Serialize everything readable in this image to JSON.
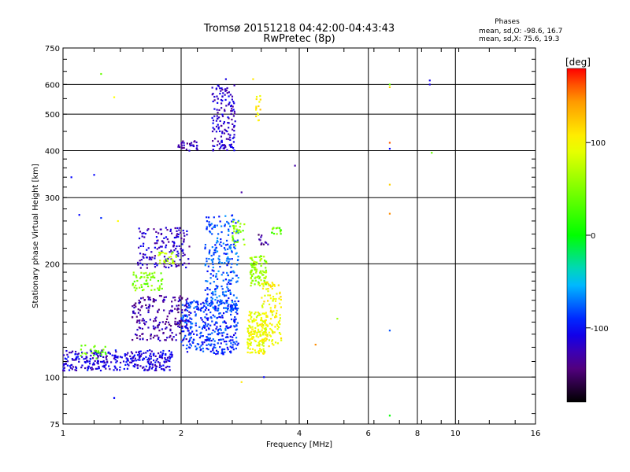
{
  "chart_data": {
    "type": "scatter",
    "title": "Tromsø 20151218 04:42:00-04:43:43",
    "subtitle": "RwPretec (8p)",
    "xlabel": "Frequency [MHz]",
    "ylabel": "Stationary phase Virtual Height [km]",
    "x_scale": "log",
    "y_scale": "log",
    "xlim": [
      1,
      16
    ],
    "ylim": [
      75,
      750
    ],
    "x_ticks": [
      1,
      2,
      4,
      6,
      8,
      10,
      16
    ],
    "y_ticks": [
      75,
      100,
      200,
      300,
      400,
      500,
      600,
      750
    ],
    "grid": true,
    "phases_header": "Phases",
    "phases_stats": [
      "mean, sd,O: -98.6, 16.7",
      "mean, sd,X:  75.6, 19.3"
    ],
    "colorbar": {
      "label": "[deg]",
      "range": [
        -180,
        180
      ],
      "ticks": [
        100,
        0,
        -100
      ],
      "colors": [
        "#ff0000",
        "#ff8000",
        "#ffff00",
        "#00ff00",
        "#00ffff",
        "#0000ff",
        "#800080",
        "#000000"
      ]
    },
    "clusters": [
      {
        "x": [
          1.0,
          1.9
        ],
        "y": [
          104,
          118
        ],
        "phase": -112,
        "n": 320
      },
      {
        "x": [
          1.1,
          1.3
        ],
        "y": [
          112,
          122
        ],
        "phase": 40,
        "n": 25
      },
      {
        "x": [
          1.5,
          2.1
        ],
        "y": [
          125,
          165
        ],
        "phase": -130,
        "n": 200
      },
      {
        "x": [
          1.5,
          1.8
        ],
        "y": [
          170,
          190
        ],
        "phase": 50,
        "n": 60
      },
      {
        "x": [
          1.55,
          2.1
        ],
        "y": [
          195,
          250
        ],
        "phase": -120,
        "n": 150
      },
      {
        "x": [
          1.75,
          1.95
        ],
        "y": [
          200,
          215
        ],
        "phase": 70,
        "n": 30
      },
      {
        "x": [
          1.95,
          2.2
        ],
        "y": [
          400,
          425
        ],
        "phase": -130,
        "n": 30
      },
      {
        "x": [
          2.0,
          2.8
        ],
        "y": [
          115,
          160
        ],
        "phase": -90,
        "n": 350
      },
      {
        "x": [
          2.3,
          2.8
        ],
        "y": [
          150,
          270
        ],
        "phase": -80,
        "n": 250
      },
      {
        "x": [
          2.4,
          2.75
        ],
        "y": [
          400,
          600
        ],
        "phase": -118,
        "n": 150
      },
      {
        "x": [
          2.7,
          2.9
        ],
        "y": [
          220,
          260
        ],
        "phase": 50,
        "n": 30
      },
      {
        "x": [
          2.95,
          3.3
        ],
        "y": [
          115,
          150
        ],
        "phase": 95,
        "n": 160
      },
      {
        "x": [
          3.0,
          3.3
        ],
        "y": [
          175,
          210
        ],
        "phase": 60,
        "n": 90
      },
      {
        "x": [
          3.2,
          3.6
        ],
        "y": [
          120,
          180
        ],
        "phase": 100,
        "n": 120
      },
      {
        "x": [
          3.1,
          3.2
        ],
        "y": [
          480,
          560
        ],
        "phase": 110,
        "n": 15
      },
      {
        "x": [
          3.4,
          3.6
        ],
        "y": [
          240,
          250
        ],
        "phase": 40,
        "n": 15
      },
      {
        "x": [
          3.15,
          3.35
        ],
        "y": [
          225,
          240
        ],
        "phase": -140,
        "n": 12
      }
    ],
    "points": [
      {
        "x": 1.25,
        "y": 640,
        "phase": 40
      },
      {
        "x": 1.35,
        "y": 555,
        "phase": 100
      },
      {
        "x": 1.05,
        "y": 340,
        "phase": -100
      },
      {
        "x": 1.2,
        "y": 345,
        "phase": -100
      },
      {
        "x": 1.1,
        "y": 270,
        "phase": -100
      },
      {
        "x": 1.25,
        "y": 265,
        "phase": -90
      },
      {
        "x": 1.38,
        "y": 260,
        "phase": 100
      },
      {
        "x": 1.35,
        "y": 88,
        "phase": -100
      },
      {
        "x": 2.6,
        "y": 620,
        "phase": -110
      },
      {
        "x": 3.05,
        "y": 620,
        "phase": 110
      },
      {
        "x": 2.85,
        "y": 310,
        "phase": -130
      },
      {
        "x": 3.25,
        "y": 100,
        "phase": -100
      },
      {
        "x": 2.85,
        "y": 97,
        "phase": 110
      },
      {
        "x": 3.9,
        "y": 365,
        "phase": -130
      },
      {
        "x": 4.4,
        "y": 122,
        "phase": 150
      },
      {
        "x": 5.0,
        "y": 143,
        "phase": 60
      },
      {
        "x": 6.8,
        "y": 600,
        "phase": 40
      },
      {
        "x": 6.8,
        "y": 590,
        "phase": 120
      },
      {
        "x": 6.8,
        "y": 420,
        "phase": 160
      },
      {
        "x": 6.8,
        "y": 405,
        "phase": -100
      },
      {
        "x": 6.8,
        "y": 325,
        "phase": 120
      },
      {
        "x": 6.8,
        "y": 272,
        "phase": 150
      },
      {
        "x": 6.8,
        "y": 133,
        "phase": -80
      },
      {
        "x": 6.8,
        "y": 79,
        "phase": 0
      },
      {
        "x": 8.6,
        "y": 615,
        "phase": -110
      },
      {
        "x": 8.6,
        "y": 600,
        "phase": -110
      },
      {
        "x": 8.7,
        "y": 395,
        "phase": 40
      }
    ]
  }
}
